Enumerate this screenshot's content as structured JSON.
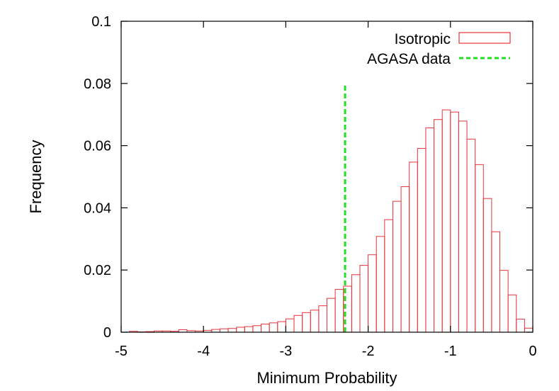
{
  "chart_data": {
    "type": "bar",
    "title": "",
    "xlabel": "Minimum Probability",
    "ylabel": "Frequency",
    "xlim": [
      -5,
      0
    ],
    "ylim": [
      0,
      0.1
    ],
    "grid": false,
    "legend_position": "top-right",
    "x_ticks": [
      -5,
      -4,
      -3,
      -2,
      -1,
      0
    ],
    "x_tick_labels": [
      "-5",
      "-4",
      "-3",
      "-2",
      "-1",
      "0"
    ],
    "y_ticks": [
      0,
      0.02,
      0.04,
      0.06,
      0.08,
      0.1
    ],
    "y_tick_labels": [
      "0",
      "0.02",
      "0.04",
      "0.06",
      "0.08",
      "0.1"
    ],
    "series": [
      {
        "name": "Isotropic",
        "kind": "histogram",
        "color": "#e8343a",
        "bin_width": 0.1,
        "bin_starts": [
          -4.9,
          -4.8,
          -4.7,
          -4.6,
          -4.5,
          -4.4,
          -4.3,
          -4.2,
          -4.1,
          -4.0,
          -3.9,
          -3.8,
          -3.7,
          -3.6,
          -3.5,
          -3.4,
          -3.3,
          -3.2,
          -3.1,
          -3.0,
          -2.9,
          -2.8,
          -2.7,
          -2.6,
          -2.5,
          -2.4,
          -2.3,
          -2.2,
          -2.1,
          -2.0,
          -1.9,
          -1.8,
          -1.7,
          -1.6,
          -1.5,
          -1.4,
          -1.3,
          -1.2,
          -1.1,
          -1.0,
          -0.9,
          -0.8,
          -0.7,
          -0.6,
          -0.5,
          -0.4,
          -0.3,
          -0.2,
          -0.1
        ],
        "values": [
          0.0003,
          0.0001,
          0.0002,
          0.0004,
          0.0004,
          0.0003,
          0.0008,
          0.0005,
          0.0004,
          0.0006,
          0.0009,
          0.0011,
          0.0012,
          0.0016,
          0.0018,
          0.0021,
          0.0026,
          0.003,
          0.0034,
          0.0043,
          0.0054,
          0.0063,
          0.0071,
          0.0085,
          0.0109,
          0.0138,
          0.0148,
          0.0185,
          0.0215,
          0.0249,
          0.0308,
          0.0362,
          0.0421,
          0.0468,
          0.0547,
          0.0591,
          0.0657,
          0.0684,
          0.0715,
          0.0708,
          0.0679,
          0.0621,
          0.0539,
          0.043,
          0.0323,
          0.0199,
          0.012,
          0.0042,
          0.0013
        ]
      },
      {
        "name": "AGASA data",
        "kind": "vertical-line",
        "color": "#22dd22",
        "x": -2.28,
        "y_range": [
          0,
          0.08
        ]
      }
    ]
  }
}
